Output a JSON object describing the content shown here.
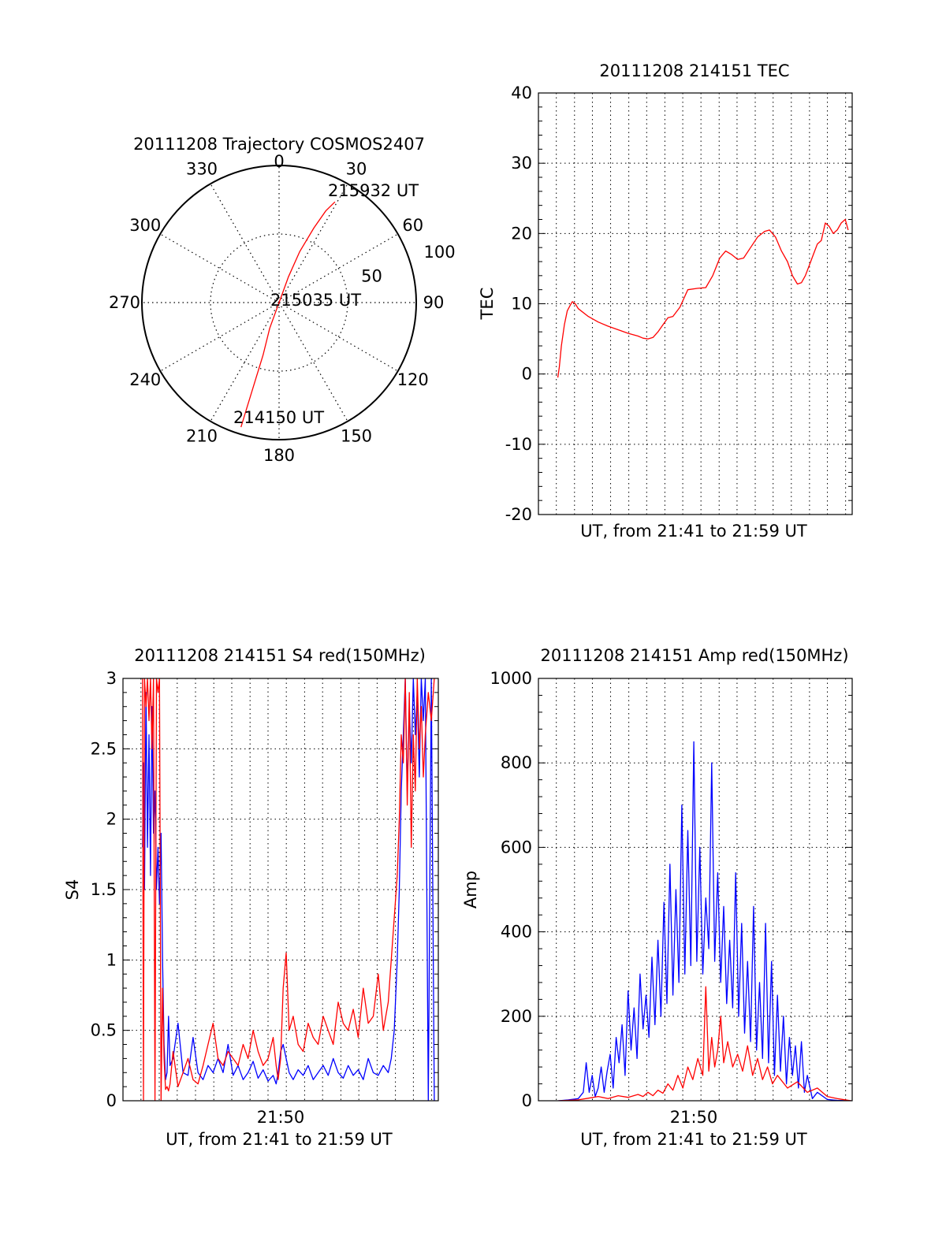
{
  "colors": {
    "red": "#ff0000",
    "blue": "#0000ff",
    "axis": "#000000",
    "grid": "#000000"
  },
  "chart_data": [
    {
      "id": "trajectory",
      "type": "polar",
      "title": "20111208 Trajectory COSMOS2407",
      "azimuth_labels": [
        "0",
        "30",
        "60",
        "90",
        "120",
        "150",
        "180",
        "210",
        "240",
        "270",
        "300",
        "330"
      ],
      "radial_labels": [
        "50",
        "100"
      ],
      "radial_ticks": [
        50,
        100
      ],
      "rmax": 100,
      "grid": true,
      "point_labels": [
        "215932 UT",
        "215035 UT",
        "214150 UT"
      ],
      "track": {
        "name": "COSMOS2407",
        "points": [
          {
            "az": 197,
            "r": 95
          },
          {
            "az": 197,
            "r": 80
          },
          {
            "az": 197,
            "r": 60
          },
          {
            "az": 197,
            "r": 40
          },
          {
            "az": 200,
            "r": 20
          },
          {
            "az": 200,
            "r": 6
          },
          {
            "az": 20,
            "r": 4
          },
          {
            "az": 20,
            "r": 20
          },
          {
            "az": 22,
            "r": 40
          },
          {
            "az": 25,
            "r": 60
          },
          {
            "az": 27,
            "r": 75
          },
          {
            "az": 29,
            "r": 84
          }
        ]
      }
    },
    {
      "id": "tec",
      "type": "line",
      "title": "20111208 214151 TEC",
      "xlabel": "UT, from 21:41 to 21:59 UT",
      "ylabel": "TEC",
      "xlim": [
        21.68,
        21.995
      ],
      "ylim": [
        -20,
        40
      ],
      "yticks": [
        -20,
        -10,
        0,
        10,
        20,
        30,
        40
      ],
      "ytick_labels": [
        "-20",
        "-10",
        "0",
        "10",
        "20",
        "30",
        "40"
      ],
      "grid": true,
      "series": [
        {
          "color": "red",
          "x": [
            21.6995,
            21.701,
            21.703,
            21.706,
            21.709,
            21.712,
            21.714,
            21.717,
            21.72,
            21.73,
            21.74,
            21.75,
            21.76,
            21.77,
            21.78,
            21.785,
            21.79,
            21.795,
            21.8,
            21.805,
            21.81,
            21.815,
            21.822,
            21.83,
            21.84,
            21.848,
            21.855,
            21.862,
            21.868,
            21.874,
            21.88,
            21.886,
            21.893,
            21.9,
            21.907,
            21.912,
            21.918,
            21.924,
            21.93,
            21.935,
            21.94,
            21.944,
            21.948,
            21.952,
            21.956,
            21.96,
            21.964,
            21.968,
            21.972,
            21.976,
            21.98,
            21.984,
            21.988,
            21.991
          ],
          "y": [
            -0.5,
            1,
            4,
            7,
            9,
            9.8,
            10.3,
            10,
            9.3,
            8.2,
            7.4,
            6.8,
            6.3,
            5.8,
            5.4,
            5.1,
            5.0,
            5.2,
            6.0,
            7.0,
            8.0,
            8.2,
            9.5,
            12.0,
            12.2,
            12.3,
            14.0,
            16.5,
            17.5,
            17.0,
            16.3,
            16.5,
            18.0,
            19.5,
            20.3,
            20.5,
            19.5,
            17.5,
            16.0,
            14.0,
            12.8,
            13.0,
            14.0,
            15.5,
            17.0,
            18.5,
            19.0,
            21.5,
            21.0,
            20.0,
            20.5,
            21.5,
            22.0,
            20.5
          ]
        }
      ]
    },
    {
      "id": "s4",
      "type": "line",
      "title": "20111208 214151 S4 red(150MHz)",
      "xlabel": "UT, from 21:41 to 21:59 UT",
      "ylabel": "S4",
      "xlim": [
        21.68,
        21.995
      ],
      "ylim": [
        0,
        3
      ],
      "yticks": [
        0,
        0.5,
        1,
        1.5,
        2,
        2.5,
        3
      ],
      "ytick_labels": [
        "0",
        "0.5",
        "1",
        "1.5",
        "2",
        "2.5",
        "3"
      ],
      "xtick_labels": [
        "21:50"
      ],
      "xticks": [
        21.8333
      ],
      "grid": true,
      "series": [
        {
          "color": "blue",
          "x": [
            21.6995,
            21.7005,
            21.7015,
            21.703,
            21.7045,
            21.706,
            21.7075,
            21.709,
            21.7105,
            21.712,
            21.7135,
            21.715,
            21.7165,
            21.718,
            21.7195,
            21.721,
            21.7225,
            21.724,
            21.7255,
            21.727,
            21.73,
            21.735,
            21.74,
            21.745,
            21.75,
            21.755,
            21.76,
            21.765,
            21.77,
            21.775,
            21.78,
            21.785,
            21.79,
            21.795,
            21.8,
            21.805,
            21.81,
            21.815,
            21.82,
            21.825,
            21.83,
            21.833,
            21.835,
            21.8375,
            21.84,
            21.843,
            21.846,
            21.85,
            21.855,
            21.86,
            21.865,
            21.87,
            21.875,
            21.88,
            21.885,
            21.89,
            21.895,
            21.9,
            21.905,
            21.91,
            21.915,
            21.92,
            21.925,
            21.93,
            21.935,
            21.94,
            21.945,
            21.948,
            21.951,
            21.954,
            21.956,
            21.958,
            21.96,
            21.962,
            21.964,
            21.966,
            21.968,
            21.97,
            21.972,
            21.974,
            21.976,
            21.978,
            21.98,
            21.982,
            21.985,
            21.988,
            21.991
          ],
          "y": [
            1.8,
            2.4,
            1.5,
            2.9,
            1.8,
            2.6,
            1.6,
            2.8,
            1.9,
            2.2,
            1.5,
            1.8,
            1.4,
            1.9,
            1.0,
            0.4,
            0.15,
            0.2,
            0.6,
            0.25,
            0.3,
            0.55,
            0.2,
            0.18,
            0.45,
            0.2,
            0.15,
            0.25,
            0.2,
            0.3,
            0.2,
            0.4,
            0.18,
            0.25,
            0.15,
            0.2,
            0.28,
            0.16,
            0.22,
            0.14,
            0.18,
            0.12,
            0.2,
            0.35,
            0.4,
            0.3,
            0.2,
            0.15,
            0.22,
            0.18,
            0.25,
            0.15,
            0.2,
            0.25,
            0.18,
            0.3,
            0.2,
            0.16,
            0.25,
            0.18,
            0.22,
            0.15,
            0.3,
            0.2,
            0.18,
            0.25,
            0.2,
            0.3,
            0.5,
            1.0,
            1.5,
            2.2,
            2.6,
            3.0,
            2.2,
            2.8,
            2.4,
            3.0,
            2.6,
            2.9,
            2.3,
            3.0,
            2.7,
            3.0,
            0.0,
            3.0,
            0.0
          ]
        },
        {
          "color": "red",
          "x": [
            21.6995,
            21.7005,
            21.7015,
            21.703,
            21.7045,
            21.706,
            21.7075,
            21.709,
            21.7105,
            21.712,
            21.7135,
            21.715,
            21.7165,
            21.718,
            21.7195,
            21.721,
            21.7225,
            21.724,
            21.7255,
            21.727,
            21.73,
            21.735,
            21.74,
            21.745,
            21.75,
            21.755,
            21.76,
            21.765,
            21.77,
            21.775,
            21.78,
            21.785,
            21.79,
            21.795,
            21.8,
            21.805,
            21.81,
            21.815,
            21.82,
            21.825,
            21.83,
            21.833,
            21.835,
            21.8375,
            21.84,
            21.843,
            21.846,
            21.85,
            21.855,
            21.86,
            21.865,
            21.87,
            21.875,
            21.88,
            21.885,
            21.89,
            21.895,
            21.9,
            21.905,
            21.91,
            21.915,
            21.92,
            21.925,
            21.93,
            21.935,
            21.94,
            21.945,
            21.948,
            21.951,
            21.954,
            21.956,
            21.958,
            21.96,
            21.962,
            21.964,
            21.966,
            21.968,
            21.97,
            21.972,
            21.974,
            21.976,
            21.978,
            21.98,
            21.982,
            21.985,
            21.988,
            21.991
          ],
          "y": [
            3.0,
            0.0,
            3.0,
            2.8,
            3.0,
            2.7,
            3.0,
            2.5,
            3.0,
            0.0,
            3.0,
            2.9,
            3.0,
            0.0,
            0.8,
            0.3,
            0.08,
            0.1,
            0.07,
            0.12,
            0.35,
            0.1,
            0.2,
            0.3,
            0.15,
            0.12,
            0.25,
            0.4,
            0.55,
            0.3,
            0.25,
            0.35,
            0.3,
            0.25,
            0.4,
            0.3,
            0.5,
            0.35,
            0.25,
            0.3,
            0.45,
            0.25,
            0.15,
            0.3,
            0.8,
            1.05,
            0.5,
            0.6,
            0.4,
            0.35,
            0.55,
            0.45,
            0.4,
            0.6,
            0.5,
            0.4,
            0.7,
            0.55,
            0.5,
            0.65,
            0.45,
            0.8,
            0.55,
            0.6,
            0.9,
            0.5,
            0.7,
            1.0,
            1.3,
            1.6,
            2.0,
            2.6,
            2.4,
            3.0,
            2.1,
            2.9,
            1.8,
            2.6,
            2.2,
            3.0,
            2.5,
            2.8,
            2.3,
            2.6,
            2.9,
            2.7,
            3.0
          ]
        }
      ]
    },
    {
      "id": "amp",
      "type": "line",
      "title": "20111208 214151 Amp red(150MHz)",
      "xlabel": "UT, from 21:41 to 21:59 UT",
      "ylabel": "Amp",
      "xlim": [
        21.68,
        21.995
      ],
      "ylim": [
        0,
        1000
      ],
      "yticks": [
        0,
        200,
        400,
        600,
        800,
        1000
      ],
      "ytick_labels": [
        "0",
        "200",
        "400",
        "600",
        "800",
        "1000"
      ],
      "xtick_labels": [
        "21:50"
      ],
      "xticks": [
        21.8333
      ],
      "grid": true,
      "series": [
        {
          "color": "blue",
          "x": [
            21.7,
            21.71,
            21.72,
            21.725,
            21.728,
            21.731,
            21.734,
            21.737,
            21.74,
            21.743,
            21.746,
            21.749,
            21.752,
            21.755,
            21.758,
            21.761,
            21.764,
            21.767,
            21.77,
            21.773,
            21.776,
            21.779,
            21.782,
            21.785,
            21.788,
            21.791,
            21.794,
            21.797,
            21.8,
            21.803,
            21.806,
            21.809,
            21.812,
            21.815,
            21.818,
            21.821,
            21.824,
            21.827,
            21.83,
            21.833,
            21.836,
            21.839,
            21.842,
            21.845,
            21.848,
            21.851,
            21.854,
            21.857,
            21.86,
            21.863,
            21.866,
            21.869,
            21.872,
            21.875,
            21.878,
            21.881,
            21.884,
            21.887,
            21.89,
            21.893,
            21.896,
            21.899,
            21.902,
            21.905,
            21.908,
            21.911,
            21.914,
            21.917,
            21.92,
            21.923,
            21.926,
            21.929,
            21.932,
            21.935,
            21.938,
            21.941,
            21.944,
            21.947,
            21.95,
            21.955,
            21.96,
            21.97,
            21.98,
            21.994
          ],
          "y": [
            0,
            2,
            5,
            20,
            90,
            20,
            60,
            10,
            30,
            80,
            20,
            70,
            110,
            30,
            150,
            90,
            180,
            60,
            260,
            120,
            220,
            100,
            300,
            170,
            250,
            150,
            340,
            180,
            380,
            200,
            470,
            230,
            560,
            250,
            500,
            280,
            700,
            300,
            640,
            320,
            850,
            330,
            600,
            300,
            480,
            360,
            800,
            330,
            540,
            280,
            460,
            230,
            380,
            220,
            540,
            200,
            420,
            160,
            330,
            140,
            460,
            120,
            280,
            100,
            420,
            90,
            330,
            60,
            250,
            70,
            200,
            40,
            150,
            60,
            130,
            30,
            140,
            20,
            60,
            5,
            20,
            3,
            1,
            0
          ]
        },
        {
          "color": "red",
          "x": [
            21.7,
            21.72,
            21.73,
            21.74,
            21.75,
            21.76,
            21.77,
            21.78,
            21.785,
            21.79,
            21.795,
            21.8,
            21.805,
            21.81,
            21.815,
            21.82,
            21.825,
            21.83,
            21.835,
            21.84,
            21.845,
            21.848,
            21.851,
            21.854,
            21.857,
            21.86,
            21.863,
            21.866,
            21.87,
            21.875,
            21.88,
            21.885,
            21.89,
            21.895,
            21.9,
            21.905,
            21.91,
            21.915,
            21.92,
            21.93,
            21.94,
            21.95,
            21.96,
            21.97,
            21.98,
            21.994
          ],
          "y": [
            0,
            2,
            6,
            10,
            5,
            12,
            8,
            15,
            10,
            20,
            12,
            25,
            18,
            40,
            25,
            60,
            30,
            80,
            50,
            100,
            60,
            270,
            70,
            150,
            80,
            120,
            200,
            90,
            140,
            80,
            110,
            70,
            130,
            60,
            100,
            50,
            80,
            40,
            60,
            30,
            45,
            20,
            30,
            10,
            5,
            0
          ]
        }
      ]
    }
  ]
}
